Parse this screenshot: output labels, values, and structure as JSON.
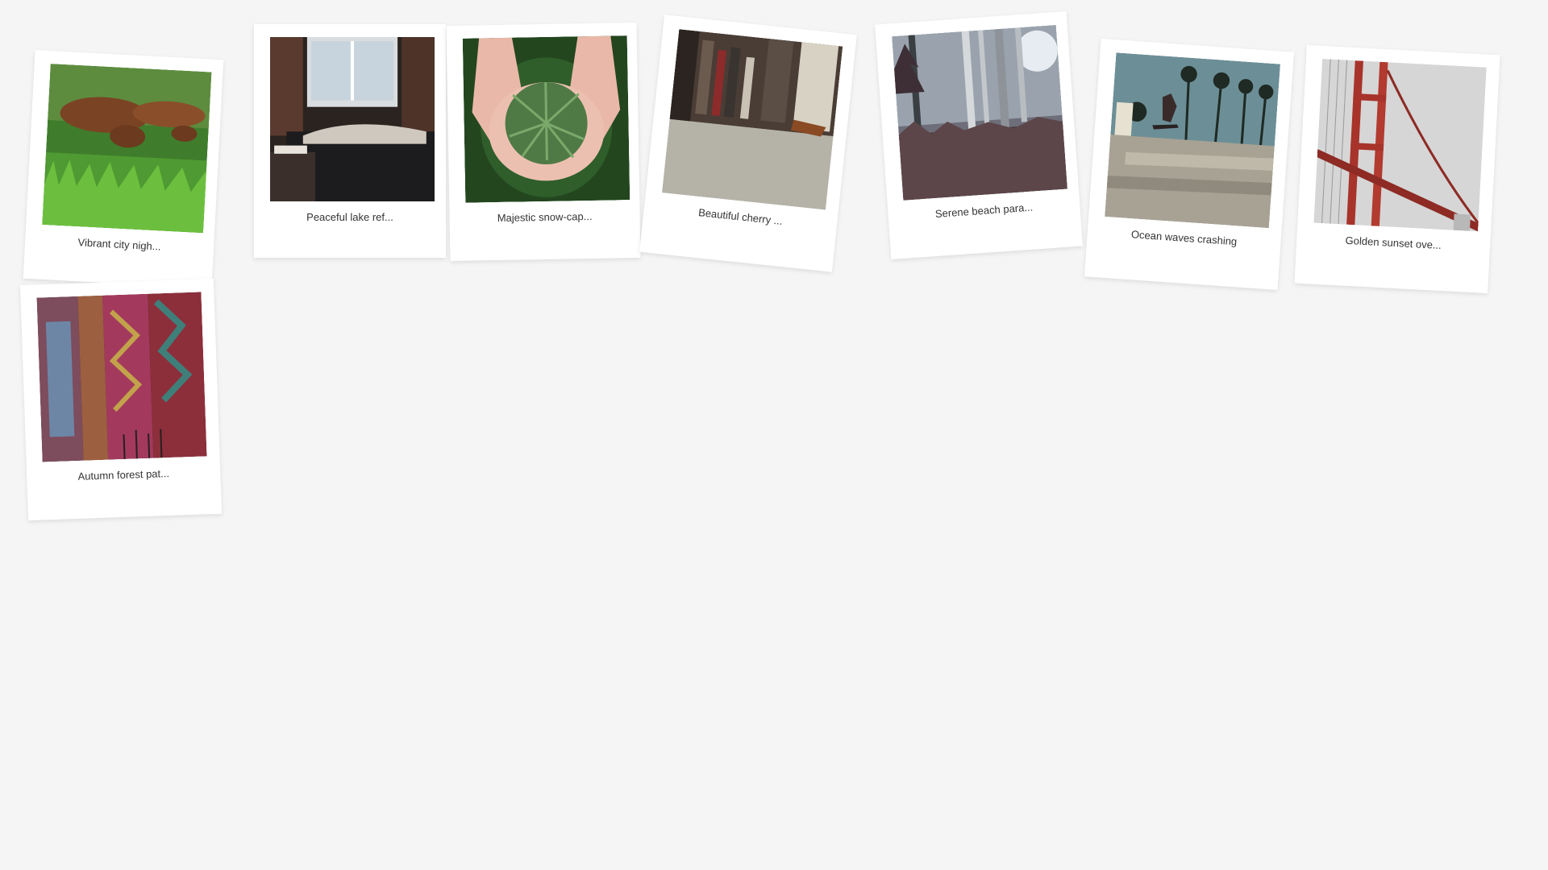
{
  "gallery": {
    "photos": [
      {
        "caption": "Vibrant city nigh...",
        "image": "dachshund-dogs-on-grass"
      },
      {
        "caption": "Peaceful lake ref...",
        "image": "person-resting-on-couch-by-window"
      },
      {
        "caption": "Majestic snow-cap...",
        "image": "hands-holding-pine-sprigs"
      },
      {
        "caption": "Beautiful cherry ...",
        "image": "low-angle-street-crowd"
      },
      {
        "caption": "Serene beach para...",
        "image": "misty-forest-trees"
      },
      {
        "caption": "Ocean waves crashing",
        "image": "skateboarder-palm-trees"
      },
      {
        "caption": "Golden sunset ove...",
        "image": "golden-gate-bridge-tower"
      },
      {
        "caption": "Autumn forest pat...",
        "image": "colorful-knit-blankets"
      }
    ]
  },
  "colors": {
    "background": "#f5f5f5",
    "card": "#ffffff",
    "caption_text": "#333333"
  }
}
